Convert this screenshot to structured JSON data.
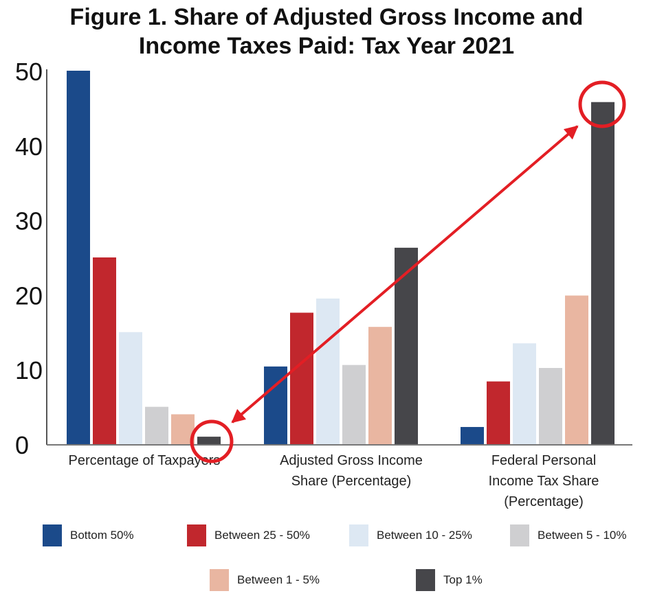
{
  "chart_data": {
    "type": "bar",
    "title_lines": [
      "Figure 1. Share of Adjusted Gross Income and",
      "Income Taxes Paid: Tax Year 2021"
    ],
    "ylim": [
      0,
      50
    ],
    "yticks": [
      "0",
      "10",
      "20",
      "30",
      "40",
      "50"
    ],
    "categories": [
      [
        "Percentage of Taxpayers"
      ],
      [
        "Adjusted Gross Income",
        "Share (Percentage)"
      ],
      [
        "Federal Personal",
        "Income Tax Share",
        "(Percentage)"
      ]
    ],
    "series": [
      {
        "name": "Bottom 50%",
        "color": "#1b4a8a",
        "values": [
          50,
          10.4,
          2.3
        ]
      },
      {
        "name": "Between 25 - 50%",
        "color": "#c1272d",
        "values": [
          25,
          17.6,
          8.4
        ]
      },
      {
        "name": "Between 10 - 25%",
        "color": "#dde8f3",
        "values": [
          15,
          19.5,
          13.5
        ]
      },
      {
        "name": "Between 5 - 10%",
        "color": "#cfcfd1",
        "values": [
          5,
          10.6,
          10.2
        ]
      },
      {
        "name": "Between 1 - 5%",
        "color": "#e9b6a1",
        "values": [
          4,
          15.7,
          19.9
        ]
      },
      {
        "name": "Top 1%",
        "color": "#46464a",
        "values": [
          1,
          26.3,
          45.8
        ]
      }
    ],
    "annotations": {
      "highlight_color": "#e31e24"
    }
  }
}
